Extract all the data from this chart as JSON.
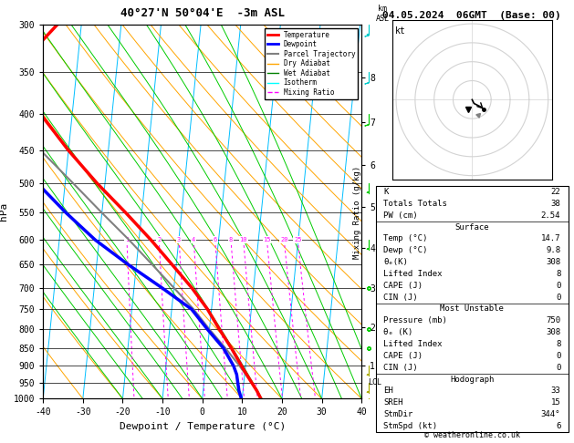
{
  "title_left": "40°27'N 50°04'E  -3m ASL",
  "title_right": "04.05.2024  06GMT  (Base: 00)",
  "xlabel": "Dewpoint / Temperature (°C)",
  "ylabel_left": "hPa",
  "pressure_levels": [
    300,
    350,
    400,
    450,
    500,
    550,
    600,
    650,
    700,
    750,
    800,
    850,
    900,
    950,
    1000
  ],
  "pressure_labels": [
    300,
    350,
    400,
    450,
    500,
    550,
    600,
    650,
    700,
    750,
    800,
    850,
    900,
    950,
    1000
  ],
  "temp_range": [
    -40,
    40
  ],
  "skew_factor": 8.0,
  "isotherm_step": 10,
  "mixing_ratio_values": [
    1,
    2,
    3,
    4,
    6,
    8,
    10,
    15,
    20,
    25
  ],
  "temp_profile": {
    "pressure": [
      1000,
      975,
      950,
      925,
      900,
      850,
      800,
      750,
      700,
      650,
      600,
      550,
      500,
      450,
      400,
      350,
      300
    ],
    "temp": [
      14.7,
      13.5,
      12.0,
      10.5,
      9.0,
      6.0,
      2.5,
      -1.0,
      -5.5,
      -11.0,
      -17.0,
      -24.0,
      -32.0,
      -40.0,
      -48.0,
      -56.0,
      -46.0
    ],
    "color": "#ff0000",
    "linewidth": 2.5
  },
  "dewpoint_profile": {
    "pressure": [
      1000,
      975,
      950,
      925,
      900,
      850,
      800,
      750,
      700,
      650,
      600,
      550,
      500,
      450,
      400,
      350,
      300
    ],
    "temp": [
      9.8,
      9.0,
      8.5,
      8.0,
      7.0,
      4.0,
      -0.5,
      -5.0,
      -13.0,
      -22.0,
      -31.0,
      -39.0,
      -47.0,
      -55.0,
      -63.0,
      -62.0,
      -58.0
    ],
    "color": "#0000ff",
    "linewidth": 2.5
  },
  "parcel_profile": {
    "pressure": [
      950,
      900,
      850,
      800,
      750,
      700,
      650,
      600,
      550,
      500,
      450,
      400
    ],
    "temp": [
      12.0,
      8.5,
      4.5,
      0.0,
      -4.5,
      -10.0,
      -16.0,
      -22.5,
      -30.0,
      -38.0,
      -47.0,
      -56.5
    ],
    "color": "#808080",
    "linewidth": 1.5
  },
  "km_ticks": {
    "values": [
      8,
      7,
      6,
      5,
      4,
      3,
      2,
      1
    ],
    "pressures": [
      356,
      411,
      472,
      540,
      616,
      700,
      795,
      898
    ]
  },
  "lcl_pressure": 950,
  "wind_data": [
    {
      "pressure": 300,
      "u": 0,
      "v": 15,
      "color": "#00cccc"
    },
    {
      "pressure": 350,
      "u": 0,
      "v": 12,
      "color": "#00cccc"
    },
    {
      "pressure": 400,
      "u": 0,
      "v": 10,
      "color": "#00cc00"
    },
    {
      "pressure": 500,
      "u": 0,
      "v": 5,
      "color": "#00cc00"
    },
    {
      "pressure": 600,
      "u": 0,
      "v": 3,
      "color": "#00cc00"
    },
    {
      "pressure": 700,
      "u": 0,
      "v": 2,
      "color": "#00cc00"
    },
    {
      "pressure": 800,
      "u": 0,
      "v": 2,
      "color": "#00cc00"
    },
    {
      "pressure": 850,
      "u": 0,
      "v": 2,
      "color": "#00cc00"
    },
    {
      "pressure": 900,
      "u": 0,
      "v": 3,
      "color": "#aaaa00"
    },
    {
      "pressure": 950,
      "u": 0,
      "v": 3,
      "color": "#aaaa00"
    },
    {
      "pressure": 1000,
      "u": 0,
      "v": 5,
      "color": "#aaaa00"
    }
  ],
  "isotherm_color": "#00bfff",
  "dry_adiabat_color": "#ffa500",
  "wet_adiabat_color": "#00cc00",
  "mixing_ratio_color": "#ff00ff",
  "info": {
    "K": "22",
    "Totals_Totals": "38",
    "PW_cm": "2.54",
    "Surf_Temp": "14.7",
    "Surf_Dewp": "9.8",
    "Surf_theta_e": "308",
    "Surf_LI": "8",
    "Surf_CAPE": "0",
    "Surf_CIN": "0",
    "MU_Press": "750",
    "MU_theta_e": "308",
    "MU_LI": "8",
    "MU_CAPE": "0",
    "MU_CIN": "0",
    "EH": "33",
    "SREH": "15",
    "StmDir": "344°",
    "StmSpd": "6"
  }
}
